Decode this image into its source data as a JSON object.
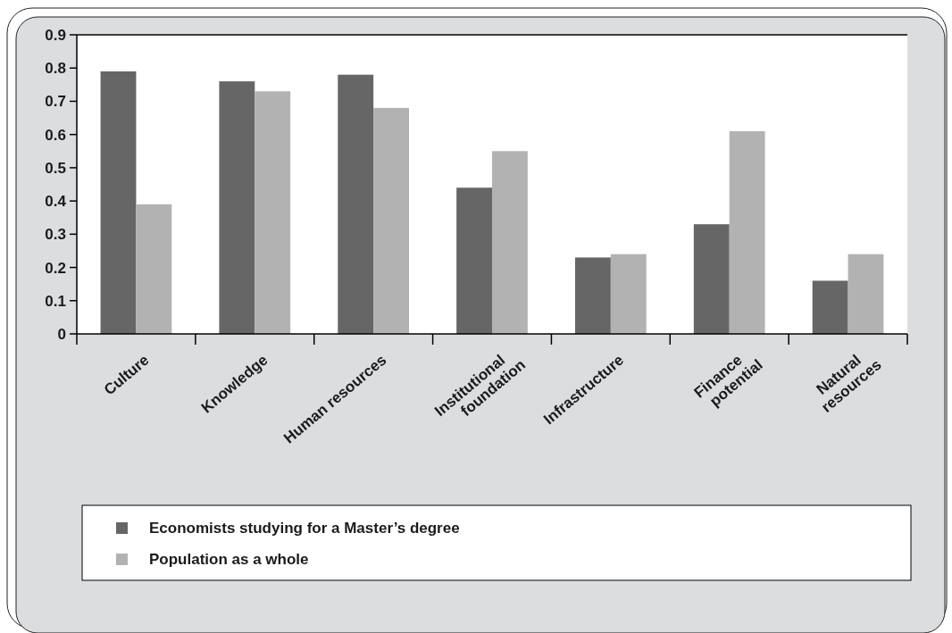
{
  "chart_data": {
    "type": "bar",
    "categories": [
      "Culture",
      "Knowledge",
      "Human resources",
      "Institutional foundation",
      "Infrastructure",
      "Finance potential",
      "Natural resources"
    ],
    "series": [
      {
        "name": "Economists studying for a Master’s degree",
        "color": "#666666",
        "values": [
          0.79,
          0.76,
          0.78,
          0.44,
          0.23,
          0.33,
          0.16
        ]
      },
      {
        "name": "Population as a whole",
        "color": "#b2b2b2",
        "values": [
          0.39,
          0.73,
          0.68,
          0.55,
          0.24,
          0.61,
          0.24
        ]
      }
    ],
    "ylim": [
      0,
      0.9
    ],
    "yticks": [
      0,
      0.1,
      0.2,
      0.3,
      0.4,
      0.5,
      0.6,
      0.7,
      0.8,
      0.9
    ],
    "grid": false,
    "legend": "bottom"
  }
}
